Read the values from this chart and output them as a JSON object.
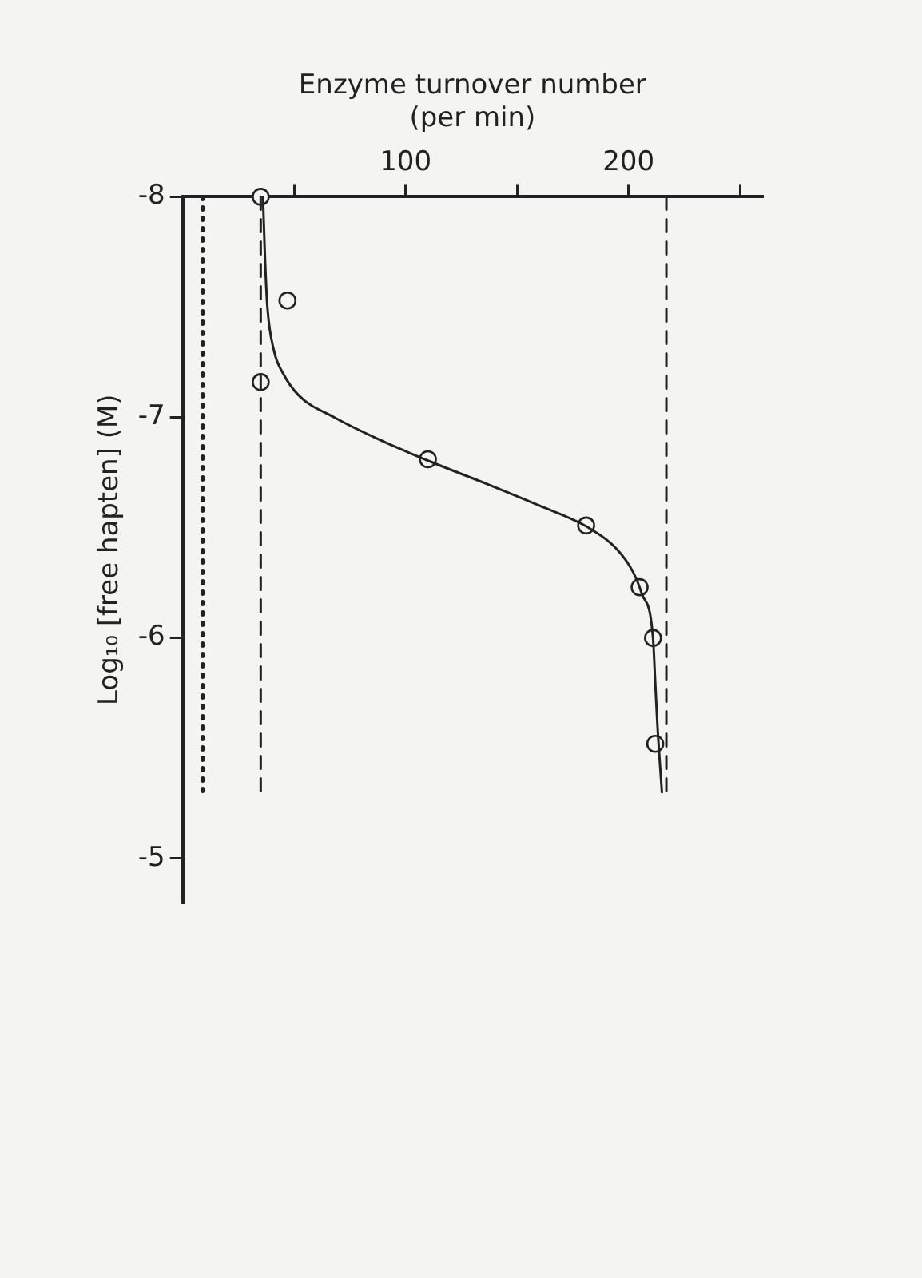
{
  "chart_data": {
    "type": "scatter",
    "xlabel": "Enzyme turnover number\n(per min)",
    "ylabel": "Log₁₀ [free hapten] (M)",
    "xlim": [
      0,
      260
    ],
    "xticks": [
      {
        "value": 50,
        "label": null
      },
      100,
      {
        "value": 150,
        "label": null
      },
      200,
      {
        "value": 250,
        "label": null
      }
    ],
    "ylim": [
      -4.8,
      -8
    ],
    "yticks": [
      -8,
      -7,
      -6,
      -5
    ],
    "grid": false,
    "legend": false,
    "series": [
      {
        "marker": "circle",
        "color": "#222222",
        "x": [
          35,
          47,
          35,
          110,
          181,
          205,
          211,
          212
        ],
        "values": [
          -8,
          -7.53,
          -7.16,
          -6.81,
          -6.51,
          -6.23,
          -6.0,
          -5.52
        ]
      },
      {
        "type": "line",
        "marker": "none",
        "line_style": "solid",
        "color": "#222222",
        "x": [
          36,
          37,
          38,
          41,
          45,
          52,
          68,
          88,
          111,
          136,
          160,
          182,
          195,
          202,
          206,
          211,
          212,
          213,
          215
        ],
        "values": [
          -8,
          -7.7,
          -7.5,
          -7.3,
          -7.2,
          -7.1,
          -7.0,
          -6.9,
          -6.8,
          -6.7,
          -6.6,
          -6.5,
          -6.4,
          -6.3,
          -6.2,
          -6.0,
          -5.8,
          -5.6,
          -5.3
        ]
      },
      {
        "type": "line",
        "marker": "none",
        "line_style": "dashed",
        "color": "#222222",
        "x": [
          35,
          35
        ],
        "values": [
          -8,
          -5.3
        ]
      },
      {
        "type": "line",
        "marker": "none",
        "line_style": "dashed",
        "color": "#222222",
        "x": [
          217,
          217
        ],
        "values": [
          -8,
          -5.3
        ]
      },
      {
        "type": "line",
        "marker": "none",
        "line_style": "dotted",
        "color": "#222222",
        "x": [
          9,
          9
        ],
        "values": [
          -8,
          -5.3
        ]
      }
    ]
  }
}
